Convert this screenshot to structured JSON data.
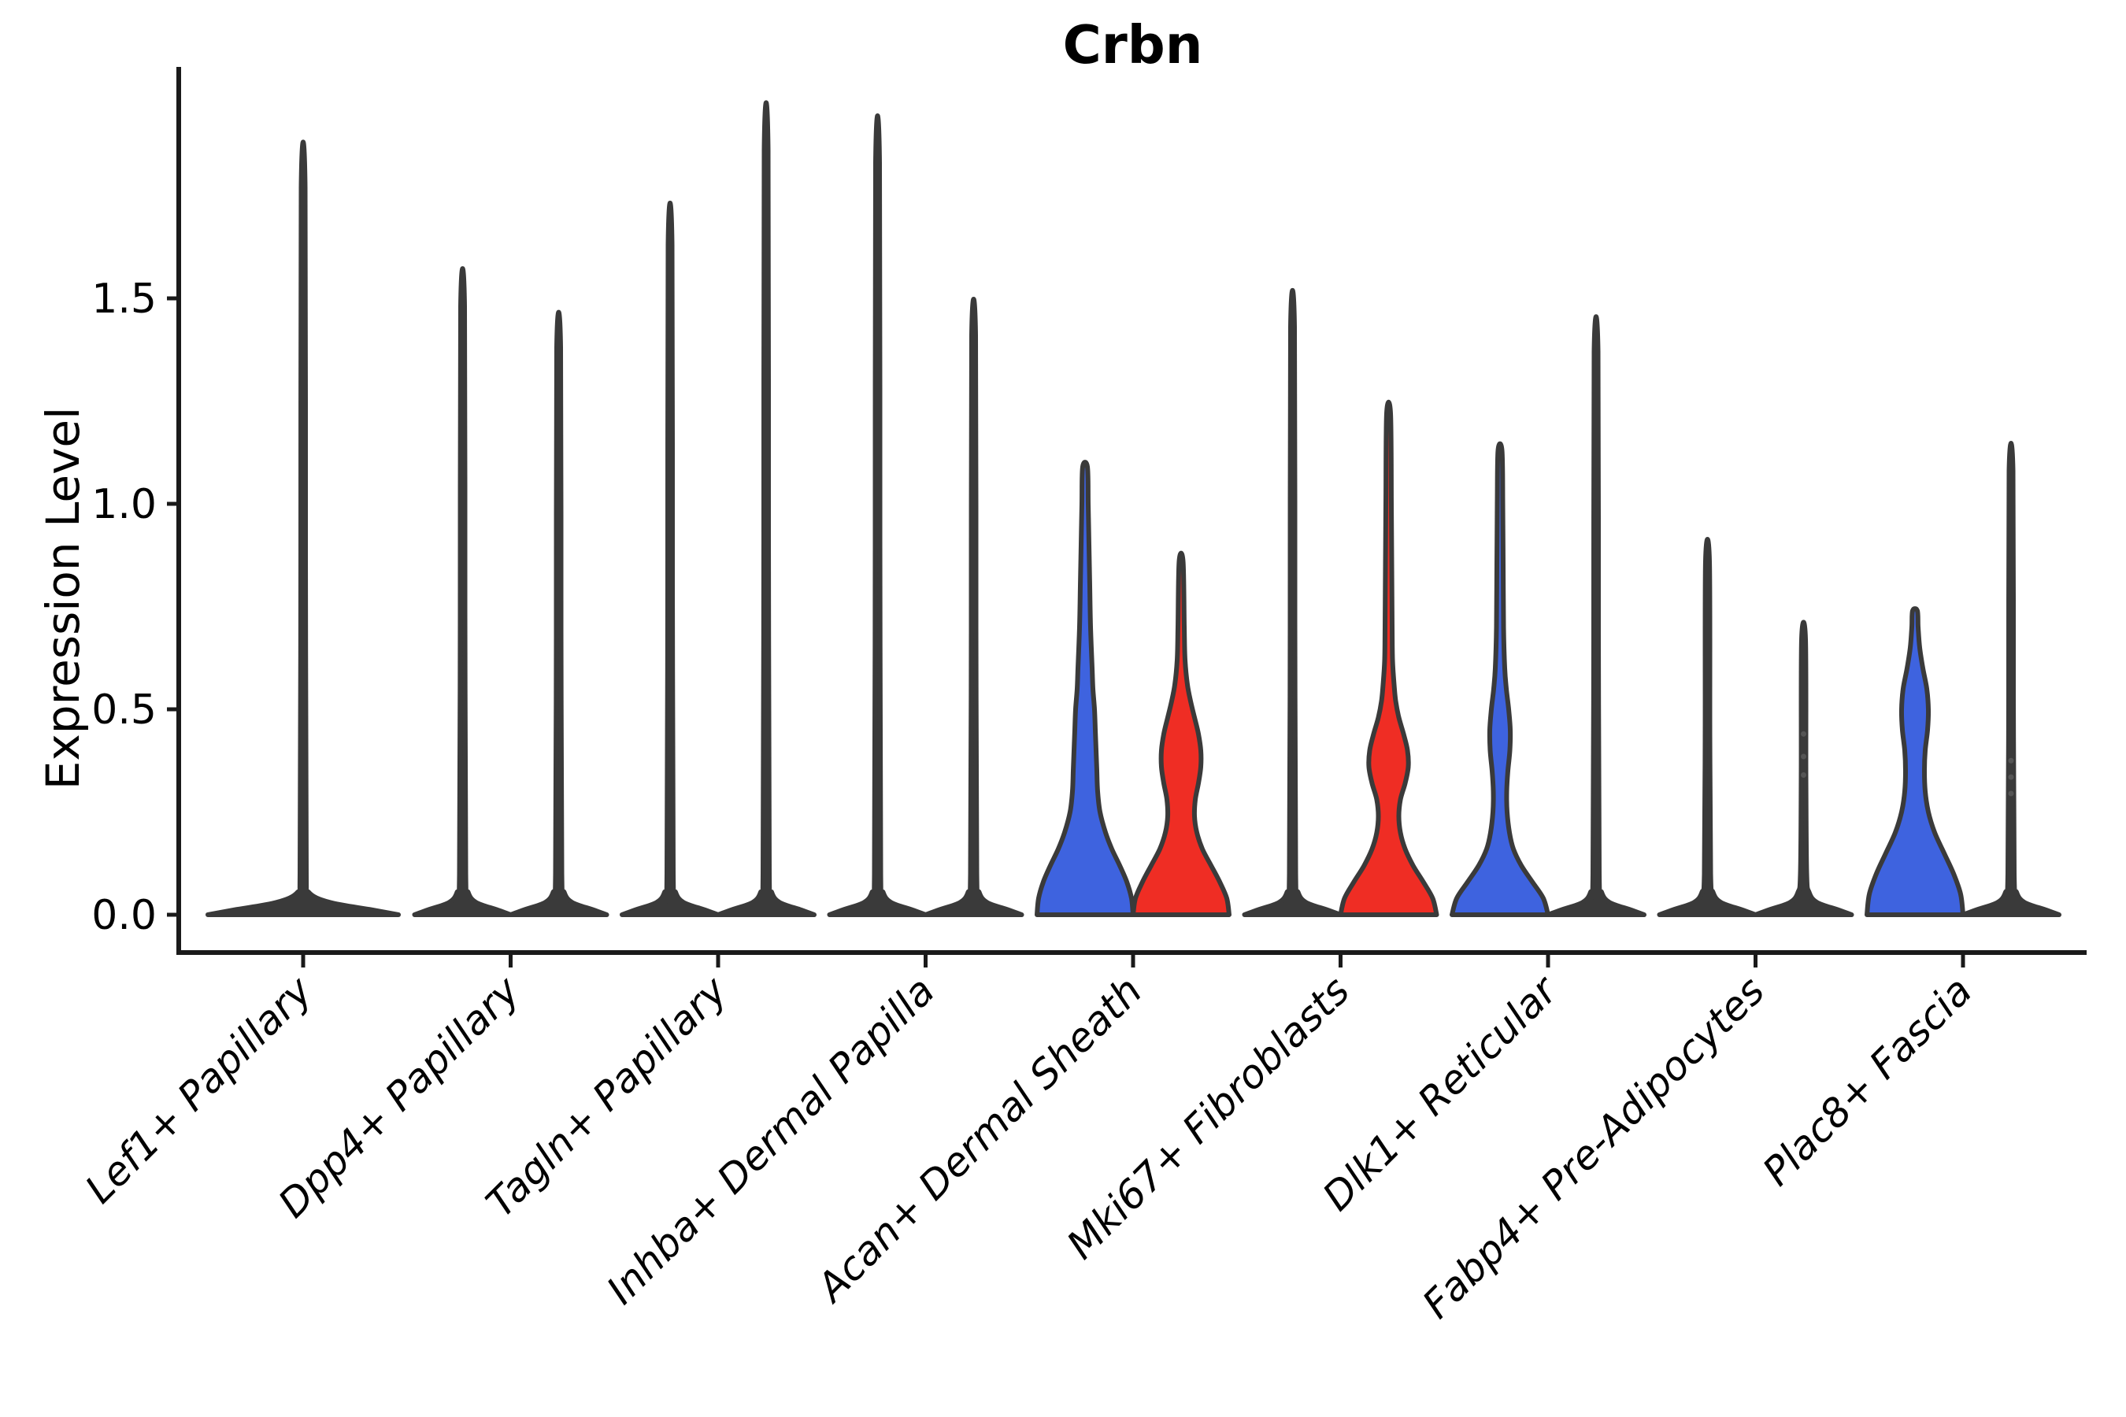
{
  "chart_data": {
    "type": "violin",
    "title": "Crbn",
    "ylabel": "Expression Level",
    "xlabel": "",
    "grid": false,
    "legend_position": "none",
    "yticks": [
      {
        "label": "0.0",
        "value": 0.0
      },
      {
        "label": "0.5",
        "value": 0.5
      },
      {
        "label": "1.0",
        "value": 1.0
      },
      {
        "label": "1.5",
        "value": 1.5
      }
    ],
    "ylim": [
      -0.09,
      2.06
    ],
    "colors": {
      "blue_fill": "#3E63DF",
      "red_fill": "#EF2D24",
      "violin_outline": "#3A3A3A",
      "axis": "#1a1a1a",
      "point": "#555555"
    },
    "categories": [
      {
        "label": "Lef1+ Papillary",
        "violins": [
          {
            "position": "center",
            "offset": 0,
            "style": "spike",
            "fill": "outline",
            "peak": 1.77,
            "base_halfwidth": 121
          }
        ]
      },
      {
        "label": "Dpp4+ Papillary",
        "violins": [
          {
            "position": "left",
            "offset": -61,
            "style": "spike",
            "fill": "outline",
            "peak": 1.48,
            "base_halfwidth": 61
          },
          {
            "position": "right",
            "offset": 61,
            "style": "spike",
            "fill": "outline",
            "peak": 1.38,
            "base_halfwidth": 61
          }
        ]
      },
      {
        "label": "Tagln+ Papillary",
        "violins": [
          {
            "position": "left",
            "offset": -61,
            "style": "spike",
            "fill": "outline",
            "peak": 1.63,
            "base_halfwidth": 61
          },
          {
            "position": "right",
            "offset": 61,
            "style": "spike",
            "fill": "outline",
            "peak": 1.86,
            "base_halfwidth": 61
          }
        ]
      },
      {
        "label": "Inhba+ Dermal Papilla",
        "violins": [
          {
            "position": "left",
            "offset": -61,
            "style": "spike",
            "fill": "outline",
            "peak": 1.83,
            "base_halfwidth": 61
          },
          {
            "position": "right",
            "offset": 61,
            "style": "spike",
            "fill": "outline",
            "peak": 1.41,
            "base_halfwidth": 61
          }
        ]
      },
      {
        "label": "Acan+ Dermal Sheath",
        "violins": [
          {
            "position": "left",
            "offset": -61,
            "style": "profile",
            "fill": "blue",
            "peak": 1.09,
            "profile": [
              [
                0,
                61
              ],
              [
                0.04,
                59
              ],
              [
                0.08,
                53
              ],
              [
                0.12,
                44
              ],
              [
                0.16,
                34
              ],
              [
                0.2,
                26
              ],
              [
                0.25,
                19
              ],
              [
                0.3,
                16
              ],
              [
                0.35,
                15
              ],
              [
                0.4,
                14
              ],
              [
                0.45,
                13
              ],
              [
                0.5,
                12
              ],
              [
                0.55,
                10
              ],
              [
                0.6,
                9
              ],
              [
                0.7,
                7
              ],
              [
                0.8,
                6
              ],
              [
                0.9,
                5
              ],
              [
                1.0,
                4
              ],
              [
                1.09,
                3
              ]
            ]
          },
          {
            "position": "right",
            "offset": 61,
            "style": "profile",
            "fill": "red",
            "peak": 0.86,
            "profile": [
              [
                0,
                61
              ],
              [
                0.04,
                58
              ],
              [
                0.08,
                49
              ],
              [
                0.12,
                38
              ],
              [
                0.16,
                27
              ],
              [
                0.2,
                20
              ],
              [
                0.24,
                17
              ],
              [
                0.28,
                18
              ],
              [
                0.32,
                22
              ],
              [
                0.36,
                25
              ],
              [
                0.4,
                25
              ],
              [
                0.44,
                22
              ],
              [
                0.48,
                17
              ],
              [
                0.52,
                12
              ],
              [
                0.56,
                8
              ],
              [
                0.62,
                5
              ],
              [
                0.7,
                4
              ],
              [
                0.86,
                2.5
              ]
            ]
          }
        ]
      },
      {
        "label": "Mki67+ Fibroblasts",
        "violins": [
          {
            "position": "left",
            "offset": -61,
            "style": "spike",
            "fill": "outline",
            "peak": 1.43,
            "base_halfwidth": 61
          },
          {
            "position": "right",
            "offset": 61,
            "style": "profile",
            "fill": "red",
            "peak": 1.22,
            "profile": [
              [
                0,
                61
              ],
              [
                0.04,
                56
              ],
              [
                0.08,
                44
              ],
              [
                0.12,
                31
              ],
              [
                0.16,
                21
              ],
              [
                0.2,
                15
              ],
              [
                0.24,
                13
              ],
              [
                0.28,
                15
              ],
              [
                0.32,
                21
              ],
              [
                0.36,
                25
              ],
              [
                0.4,
                24
              ],
              [
                0.44,
                19
              ],
              [
                0.48,
                13
              ],
              [
                0.52,
                9
              ],
              [
                0.56,
                7
              ],
              [
                0.62,
                5
              ],
              [
                0.7,
                4.5
              ],
              [
                0.85,
                4
              ],
              [
                1.0,
                3.5
              ],
              [
                1.22,
                2.5
              ]
            ]
          }
        ]
      },
      {
        "label": "Dlk1+ Reticular",
        "violins": [
          {
            "position": "left",
            "offset": -61,
            "style": "profile",
            "fill": "blue",
            "peak": 1.13,
            "profile": [
              [
                0,
                61
              ],
              [
                0.04,
                55
              ],
              [
                0.08,
                41
              ],
              [
                0.12,
                27
              ],
              [
                0.16,
                17
              ],
              [
                0.2,
                12
              ],
              [
                0.25,
                9
              ],
              [
                0.3,
                8.5
              ],
              [
                0.35,
                10
              ],
              [
                0.4,
                12.5
              ],
              [
                0.45,
                13
              ],
              [
                0.5,
                11
              ],
              [
                0.55,
                8
              ],
              [
                0.6,
                6
              ],
              [
                0.7,
                4.5
              ],
              [
                0.85,
                4
              ],
              [
                1.0,
                3.5
              ],
              [
                1.13,
                2.5
              ]
            ]
          },
          {
            "position": "right",
            "offset": 61,
            "style": "spike",
            "fill": "outline",
            "peak": 1.37,
            "base_halfwidth": 61
          }
        ]
      },
      {
        "label": "Fabp4+ Pre-Adipocytes",
        "violins": [
          {
            "position": "left",
            "offset": -61,
            "style": "spike",
            "fill": "outline",
            "peak": 0.86,
            "base_halfwidth": 61
          },
          {
            "position": "right",
            "offset": 61,
            "style": "spike",
            "fill": "outline",
            "peak": 0.67,
            "base_halfwidth": 61,
            "points": [
              0.34,
              0.385,
              0.44
            ]
          }
        ]
      },
      {
        "label": "Plac8+ Fascia",
        "violins": [
          {
            "position": "left",
            "offset": -61,
            "style": "profile",
            "fill": "blue",
            "peak": 0.74,
            "profile": [
              [
                0,
                61
              ],
              [
                0.05,
                58
              ],
              [
                0.1,
                49
              ],
              [
                0.15,
                37
              ],
              [
                0.2,
                25
              ],
              [
                0.25,
                17
              ],
              [
                0.3,
                13
              ],
              [
                0.35,
                12
              ],
              [
                0.4,
                13
              ],
              [
                0.45,
                16
              ],
              [
                0.5,
                17
              ],
              [
                0.55,
                15
              ],
              [
                0.6,
                10
              ],
              [
                0.65,
                6
              ],
              [
                0.7,
                4
              ],
              [
                0.74,
                3
              ]
            ]
          },
          {
            "position": "right",
            "offset": 61,
            "style": "spike",
            "fill": "outline",
            "peak": 1.08,
            "base_halfwidth": 61,
            "points": [
              0.295,
              0.335,
              0.375
            ]
          }
        ]
      }
    ]
  }
}
